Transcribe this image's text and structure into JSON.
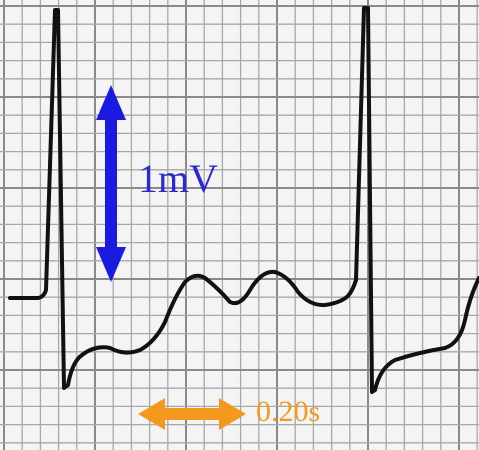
{
  "labels": {
    "amplitude": "1mV",
    "duration": "0.20s"
  }
}
